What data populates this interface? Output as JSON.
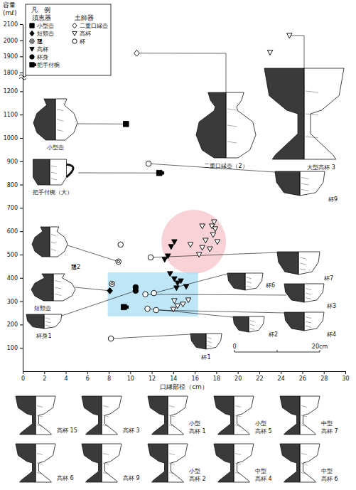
{
  "chart_data": {
    "type": "scatter",
    "ylabel": [
      "容量",
      "(mℓ)"
    ],
    "xlabel": "口縁部径（cm）",
    "xlim": [
      0,
      30
    ],
    "xticks": [
      0,
      2,
      4,
      6,
      8,
      10,
      12,
      14,
      16,
      18,
      20,
      22,
      24,
      26,
      28,
      30
    ],
    "ylim": [
      0,
      2100
    ],
    "axis_break": [
      1250,
      1800
    ],
    "yticks": [
      100,
      200,
      300,
      400,
      500,
      600,
      700,
      800,
      900,
      1000,
      1100,
      1200,
      1800,
      1900,
      2000,
      2100
    ],
    "legend": "upper left",
    "legend_title": "凡　例",
    "groups": [
      "須恵器",
      "土師器"
    ],
    "series": [
      {
        "name": "小型壺",
        "group": "須恵器",
        "marker": "square",
        "color": "#000000",
        "x": [
          9.6
        ],
        "values": [
          1060
        ],
        "labels": [
          "小型壺"
        ]
      },
      {
        "name": "短頸壺",
        "group": "須恵器",
        "marker": "diamond",
        "color": "#000000",
        "x": [
          8.1
        ],
        "values": [
          345
        ],
        "labels": [
          "短頸壺"
        ]
      },
      {
        "name": "𤭯",
        "group": "須恵器",
        "marker": "double_circle",
        "color": "#000000",
        "x": [
          8.3,
          8.9
        ],
        "values": [
          375,
          470
        ],
        "labels": [
          null,
          "𤭯2"
        ]
      },
      {
        "name": "高杯",
        "group": "須恵器",
        "marker": "triangle_down",
        "color": "#000000",
        "x": [
          13.2,
          13.5,
          13.8,
          14.1,
          13.7,
          14.1,
          14.4,
          14.7,
          15.2,
          14.3
        ],
        "values": [
          479,
          494,
          534,
          555,
          418,
          396,
          378,
          387,
          363,
          357
        ]
      },
      {
        "name": "杯身",
        "group": "須恵器",
        "marker": "circle",
        "color": "#000000",
        "x": [
          10.5,
          10.5
        ],
        "values": [
          345,
          360
        ],
        "labels": [
          "杯身1",
          null
        ]
      },
      {
        "name": "把手付椀",
        "group": "須恵器",
        "marker": "handle_square",
        "color": "#000000",
        "x": [
          12.7,
          9.4
        ],
        "values": [
          850,
          275
        ],
        "labels": [
          "把手付椀（大）",
          null
        ]
      },
      {
        "name": "二重口縁壺",
        "group": "土師器",
        "marker": "diamond_open",
        "color": "#000000",
        "x": [
          10.6
        ],
        "values": [
          1920
        ],
        "labels": [
          "二重口縁壺（2）"
        ]
      },
      {
        "name": "高杯",
        "group": "土師器",
        "marker": "triangle_down_open",
        "color": "#000000",
        "x": [
          24.8,
          23.0,
          16.7,
          17.6,
          17.9,
          17.7,
          17.0,
          16.7,
          17.4,
          18.1,
          15.6,
          16.4,
          17.8,
          14.1,
          14.4,
          14.9,
          14.0,
          15.4
        ],
        "values": [
          2030,
          1925,
          622,
          622,
          610,
          585,
          561,
          530,
          524,
          555,
          543,
          500,
          640,
          302,
          280,
          287,
          265,
          305
        ],
        "labels": [
          "大型高杯 3",
          null,
          null,
          null,
          null,
          null,
          null,
          null,
          null,
          null,
          null,
          null,
          null,
          null,
          null,
          null,
          null,
          null
        ]
      },
      {
        "name": "杯",
        "group": "土師器",
        "marker": "circle_open",
        "color": "#000000",
        "x": [
          8.2,
          11.7,
          11.9,
          9.1,
          12.2,
          11.4,
          12.4,
          11.6
        ],
        "values": [
          140,
          890,
          488,
          543,
          335,
          330,
          262,
          268
        ],
        "labels": [
          "杯1",
          "杯9",
          "杯7",
          null,
          "杯6",
          "杯3",
          "杯4",
          "杯2"
        ]
      }
    ],
    "regions": [
      {
        "shape": "ellipse",
        "color": "#f5c3c9",
        "x": [
          12.9,
          18.9
        ],
        "y": [
          418,
          692
        ]
      },
      {
        "shape": "rect",
        "color": "#a9def4",
        "x": [
          7.9,
          16.3
        ],
        "y": [
          235,
          424
        ]
      }
    ],
    "scale_bar_labels": [
      "0",
      "20cm"
    ],
    "figure_labels": [
      [
        "高杯 15"
      ],
      [
        "高杯 3"
      ],
      [
        "小型",
        "高杯 1"
      ],
      [
        "小型",
        "高杯 5"
      ],
      [
        "中型",
        "高杯 7"
      ],
      [
        "高杯 6"
      ],
      [
        "高杯 9"
      ],
      [
        "小型",
        "高杯 2"
      ],
      [
        "中型",
        "高杯 4"
      ],
      [
        "中型",
        "高杯 6"
      ]
    ]
  }
}
